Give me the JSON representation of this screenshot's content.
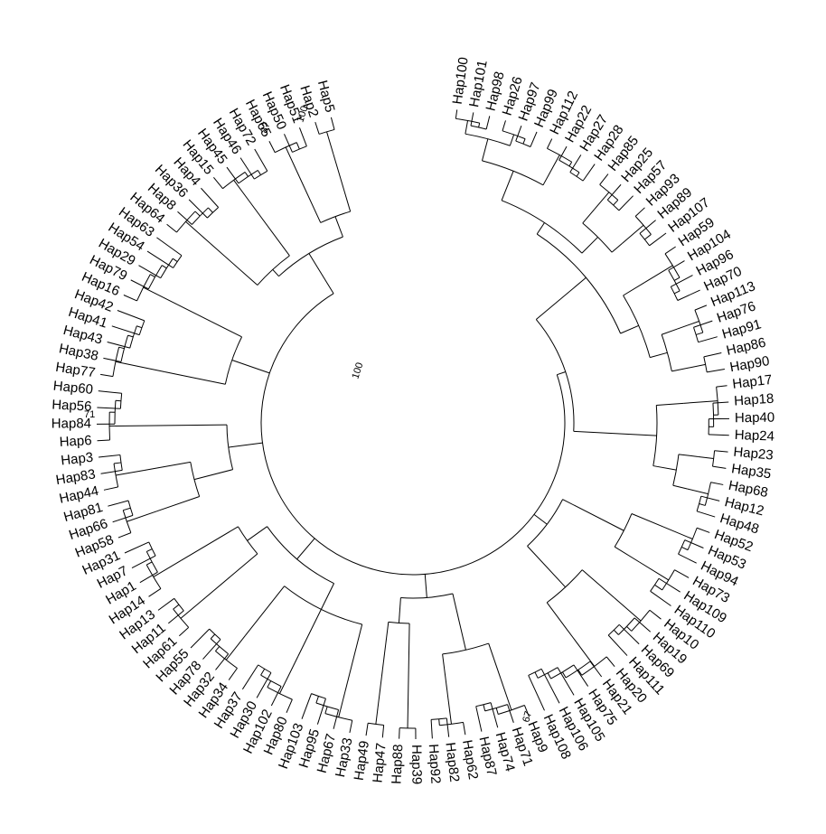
{
  "tree": {
    "type": "circular-dendrogram",
    "tip_labels": [
      "Hap100",
      "Hap101",
      "Hap98",
      "Hap26",
      "Hap97",
      "Hap99",
      "Hap112",
      "Hap22",
      "Hap27",
      "Hap28",
      "Hap85",
      "Hap25",
      "Hap57",
      "Hap93",
      "Hap89",
      "Hap107",
      "Hap59",
      "Hap104",
      "Hap96",
      "Hap70",
      "Hap113",
      "Hap76",
      "Hap91",
      "Hap86",
      "Hap90",
      "Hap17",
      "Hap18",
      "Hap40",
      "Hap24",
      "Hap23",
      "Hap35",
      "Hap68",
      "Hap12",
      "Hap48",
      "Hap52",
      "Hap53",
      "Hap94",
      "Hap73",
      "Hap109",
      "Hap110",
      "Hap10",
      "Hap19",
      "Hap69",
      "Hap111",
      "Hap20",
      "Hap21",
      "Hap75",
      "Hap105",
      "Hap106",
      "Hap108",
      "Hap9",
      "Hap71",
      "Hap74",
      "Hap87",
      "Hap62",
      "Hap82",
      "Hap92",
      "Hap39",
      "Hap88",
      "Hap47",
      "Hap49",
      "Hap33",
      "Hap67",
      "Hap95",
      "Hap103",
      "Hap80",
      "Hap102",
      "Hap30",
      "Hap37",
      "Hap34",
      "Hap32",
      "Hap78",
      "Hap55",
      "Hap61",
      "Hap11",
      "Hap13",
      "Hap14",
      "Hap1",
      "Hap7",
      "Hap31",
      "Hap58",
      "Hap66",
      "Hap81",
      "Hap44",
      "Hap83",
      "Hap3",
      "Hap6",
      "Hap84",
      "Hap56",
      "Hap60",
      "Hap77",
      "Hap38",
      "Hap43",
      "Hap41",
      "Hap42",
      "Hap16",
      "Hap79",
      "Hap29",
      "Hap54",
      "Hap63",
      "Hap64",
      "Hap8",
      "Hap36",
      "Hap4",
      "Hap15",
      "Hap45",
      "Hap46",
      "Hap72",
      "Hap65",
      "Hap50",
      "Hap51",
      "Hap2",
      "Hap5"
    ],
    "support_values": [
      {
        "label": "100",
        "near": "Hap5"
      },
      {
        "label": "87",
        "near": "Hap2"
      },
      {
        "label": "100",
        "near": "Hap5-Hap2 base"
      },
      {
        "label": "71",
        "near": "Hap60"
      },
      {
        "label": "67",
        "near": "Hap87"
      }
    ]
  }
}
